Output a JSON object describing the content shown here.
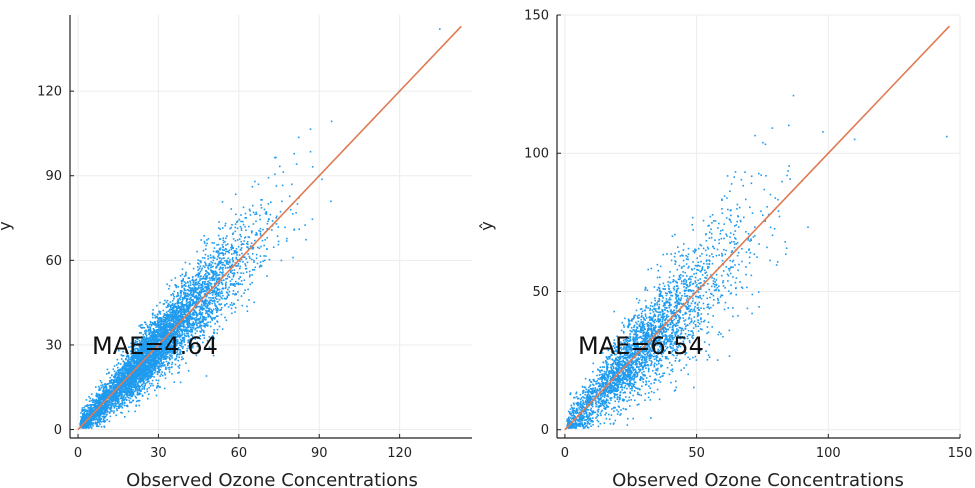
{
  "colors": {
    "points": "#1f9bef",
    "fit_line": "#e07a52",
    "grid": "#ececec",
    "axis": "#222222"
  },
  "chart_data": [
    {
      "type": "scatter",
      "xlabel": "Observed Ozone Concentrations",
      "ylabel": "y",
      "annotation": "MAE=4.64",
      "xlim": [
        -3,
        147
      ],
      "ylim": [
        -3,
        147
      ],
      "xticks": [
        0,
        30,
        60,
        90,
        120
      ],
      "yticks": [
        0,
        30,
        60,
        90,
        120
      ],
      "xtick_labels": [
        "0",
        "30",
        "60",
        "90",
        "120"
      ],
      "ytick_labels": [
        "0",
        "30",
        "60",
        "90",
        "120"
      ],
      "grid": true,
      "n_points": 6000,
      "noise_sd": 6.1,
      "reference_line": {
        "x": [
          0,
          143
        ],
        "y": [
          0,
          143
        ]
      },
      "sample_points": {
        "x": [
          2,
          5,
          10,
          15,
          20,
          25,
          30,
          35,
          40,
          45,
          50,
          55,
          60,
          65,
          70,
          75,
          80,
          90,
          100,
          110,
          120,
          130,
          135
        ],
        "y": [
          2,
          5,
          10,
          15,
          20,
          25,
          30,
          35,
          40,
          45,
          50,
          55,
          60,
          65,
          70,
          75,
          80,
          90,
          100,
          110,
          120,
          130,
          142
        ]
      }
    },
    {
      "type": "scatter",
      "xlabel": "Observed Ozone Concentrations",
      "ylabel": "ŷ",
      "annotation": "MAE=6.54",
      "xlim": [
        -3,
        150
      ],
      "ylim": [
        -3,
        150
      ],
      "xticks": [
        0,
        50,
        100,
        150
      ],
      "yticks": [
        0,
        50,
        100,
        150
      ],
      "xtick_labels": [
        "0",
        "50",
        "100",
        "150"
      ],
      "ytick_labels": [
        "0",
        "50",
        "100",
        "150"
      ],
      "grid": true,
      "n_points": 3200,
      "noise_sd": 8.8,
      "reference_line": {
        "x": [
          0,
          146
        ],
        "y": [
          0,
          146
        ]
      },
      "sample_points": {
        "x": [
          2,
          5,
          10,
          15,
          20,
          25,
          30,
          35,
          40,
          45,
          50,
          55,
          60,
          65,
          70,
          80,
          90,
          100,
          110,
          145
        ],
        "y": [
          2,
          5,
          10,
          15,
          20,
          25,
          30,
          35,
          40,
          45,
          50,
          55,
          60,
          65,
          70,
          80,
          90,
          100,
          105,
          106
        ]
      }
    }
  ]
}
